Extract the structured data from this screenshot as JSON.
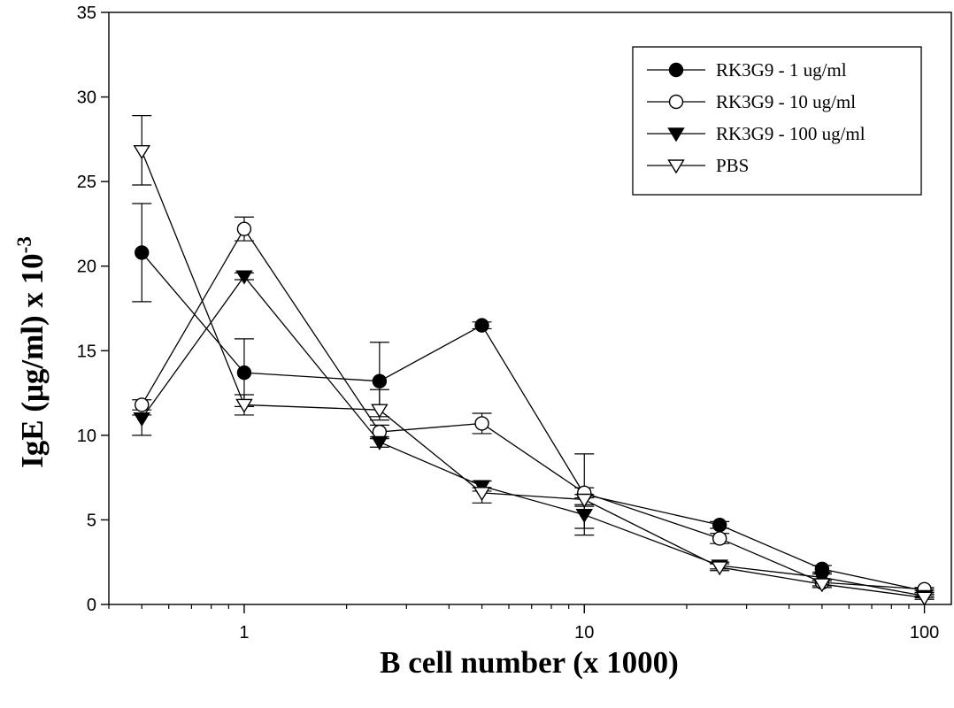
{
  "chart_data": {
    "type": "scatter",
    "title": "",
    "xlabel": "B cell number (x 1000)",
    "ylabel": "IgE (μg/ml) x 10",
    "ylabel_superscript": "-3",
    "x_scale": "log",
    "xlim": [
      0.4,
      120
    ],
    "ylim": [
      0,
      35
    ],
    "xticks": [
      1,
      10,
      100
    ],
    "xtick_labels": [
      "1",
      "10",
      "100"
    ],
    "yticks": [
      0,
      5,
      10,
      15,
      20,
      25,
      30,
      35
    ],
    "ytick_labels": [
      "0",
      "5",
      "10",
      "15",
      "20",
      "25",
      "30",
      "35"
    ],
    "grid": false,
    "legend_position": "top-right",
    "x": [
      0.5,
      1,
      2.5,
      5,
      10,
      25,
      50,
      100
    ],
    "series": [
      {
        "name": "RK3G9 - 1 ug/ml",
        "marker": "circle-filled",
        "color": "#000000",
        "values": [
          20.8,
          13.7,
          13.2,
          16.5,
          6.5,
          4.7,
          2.1,
          0.8
        ],
        "err_up": [
          2.9,
          2.0,
          2.3,
          0.2,
          2.4,
          0.2,
          0.2,
          0.1
        ],
        "err_down": [
          2.9,
          2.0,
          2.3,
          0.2,
          2.4,
          0.2,
          0.2,
          0.1
        ]
      },
      {
        "name": "RK3G9 - 10 ug/ml",
        "marker": "circle-open",
        "color": "#000000",
        "values": [
          11.8,
          22.2,
          10.2,
          10.7,
          6.6,
          3.9,
          1.3,
          0.9
        ],
        "err_up": [
          0.3,
          0.7,
          0.4,
          0.6,
          0.3,
          0.3,
          0.2,
          0.1
        ],
        "err_down": [
          0.3,
          0.7,
          0.4,
          0.6,
          0.3,
          0.3,
          0.2,
          0.1
        ]
      },
      {
        "name": "RK3G9 - 100 ug/ml",
        "marker": "triangle-down-filled",
        "color": "#000000",
        "values": [
          11.0,
          19.4,
          9.6,
          7.0,
          5.3,
          2.3,
          1.6,
          0.5
        ],
        "err_up": [
          0.2,
          0.2,
          0.3,
          0.3,
          0.5,
          0.2,
          0.2,
          0.1
        ],
        "err_down": [
          1.0,
          0.2,
          0.3,
          0.3,
          0.8,
          0.2,
          0.2,
          0.1
        ]
      },
      {
        "name": "PBS",
        "marker": "triangle-down-open",
        "color": "#000000",
        "values": [
          26.8,
          11.8,
          11.5,
          6.6,
          6.2,
          2.2,
          1.2,
          0.4
        ],
        "err_up": [
          2.1,
          0.6,
          1.2,
          0.3,
          0.3,
          0.2,
          0.2,
          0.1
        ],
        "err_down": [
          2.0,
          0.6,
          0.4,
          0.6,
          0.3,
          0.2,
          0.2,
          0.1
        ]
      }
    ]
  }
}
